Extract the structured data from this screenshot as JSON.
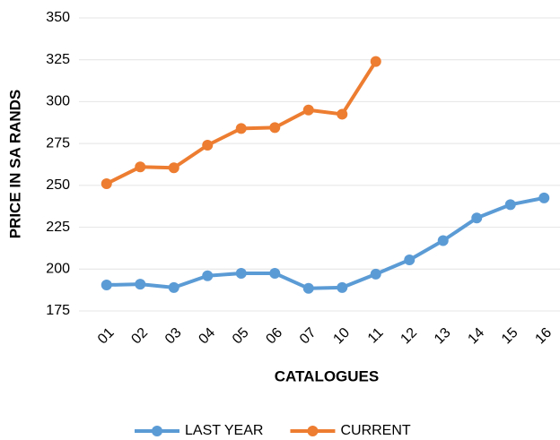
{
  "chart_data": {
    "type": "line",
    "xlabel": "CATALOGUES",
    "ylabel": "PRICE IN SA RANDS",
    "categories": [
      "01",
      "02",
      "03",
      "04",
      "05",
      "06",
      "07",
      "10",
      "11",
      "12",
      "13",
      "14",
      "15",
      "16"
    ],
    "series": [
      {
        "name": "LAST YEAR",
        "color": "#5b9bd5",
        "values": [
          190.5,
          191,
          189,
          196,
          197.5,
          197.5,
          188.5,
          189,
          197,
          205.5,
          217,
          230.5,
          238.5,
          242.5
        ]
      },
      {
        "name": "CURRENT",
        "color": "#ed7d31",
        "values": [
          251,
          261,
          260.5,
          274,
          284,
          284.5,
          295,
          292.5,
          324,
          null,
          null,
          null,
          null,
          null
        ]
      }
    ],
    "ylim": [
      175,
      350
    ],
    "yticks": [
      175,
      200,
      225,
      250,
      275,
      300,
      325,
      350
    ],
    "grid": true,
    "legend": "bottom"
  }
}
